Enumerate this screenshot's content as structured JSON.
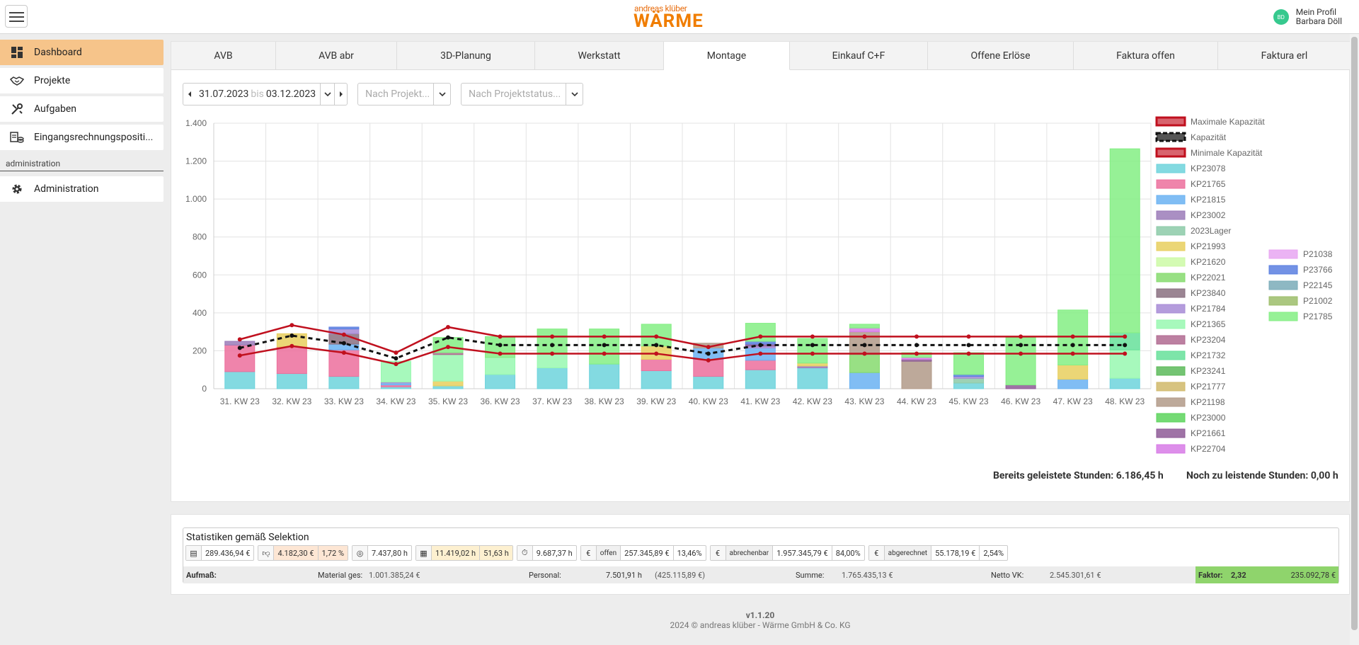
{
  "header": {
    "logo_small": "andreas klüber",
    "logo_big": "WÄRME",
    "avatar_initials": "BD",
    "profile_label": "Mein Profil",
    "profile_name": "Barbara Döll"
  },
  "sidebar": {
    "items": [
      {
        "label": "Dashboard",
        "icon": "dashboard-icon"
      },
      {
        "label": "Projekte",
        "icon": "handshake-icon"
      },
      {
        "label": "Aufgaben",
        "icon": "tools-icon"
      },
      {
        "label": "Eingangsrechnungspositi...",
        "icon": "invoice-coins-icon"
      }
    ],
    "section_label": "administration",
    "admin_item": {
      "label": "Administration",
      "icon": "gear-icon"
    }
  },
  "tabs": [
    "AVB",
    "AVB abr",
    "3D-Planung",
    "Werkstatt",
    "Montage",
    "Einkauf C+F",
    "Offene Erlöse",
    "Faktura offen",
    "Faktura erl"
  ],
  "filters": {
    "date_from": "31.07.2023",
    "date_sep": "bis",
    "date_to": "03.12.2023",
    "project_placeholder": "Nach Projekt...",
    "status_placeholder": "Nach Projektstatus..."
  },
  "totals": {
    "done": "Bereits geleistete Stunden: 6.186,45 h",
    "todo": "Noch zu leistende Stunden: 0,00 h"
  },
  "chart_data": {
    "type": "bar",
    "stacked": true,
    "categories": [
      "31. KW 23",
      "32. KW 23",
      "33. KW 23",
      "34. KW 23",
      "35. KW 23",
      "36. KW 23",
      "37. KW 23",
      "38. KW 23",
      "39. KW 23",
      "40. KW 23",
      "41. KW 23",
      "42. KW 23",
      "43. KW 23",
      "44. KW 23",
      "45. KW 23",
      "46. KW 23",
      "47. KW 23",
      "48. KW 23"
    ],
    "ylim": [
      0,
      1400
    ],
    "yticks": [
      0,
      200,
      400,
      600,
      800,
      1000,
      1200,
      1400
    ],
    "ytick_labels": [
      "0",
      "200",
      "400",
      "600",
      "800",
      "1.000",
      "1.200",
      "1.400"
    ],
    "grid": true,
    "legend_placement": "right",
    "lines": [
      {
        "name": "Maximale Kapazität",
        "color": "#c0101e",
        "dashed": false,
        "values": [
          260,
          335,
          285,
          190,
          325,
          275,
          275,
          275,
          275,
          220,
          275,
          275,
          275,
          275,
          275,
          275,
          275,
          275
        ]
      },
      {
        "name": "Kapazität",
        "color": "#111111",
        "dashed": true,
        "values": [
          215,
          280,
          240,
          160,
          270,
          230,
          230,
          230,
          230,
          185,
          230,
          230,
          230,
          230,
          230,
          230,
          230,
          230
        ]
      },
      {
        "name": "Minimale Kapazität",
        "color": "#c0101e",
        "dashed": false,
        "values": [
          175,
          225,
          190,
          130,
          220,
          185,
          185,
          185,
          185,
          150,
          185,
          185,
          185,
          185,
          185,
          185,
          185,
          185
        ]
      }
    ],
    "series": [
      {
        "name": "KP23078",
        "color": "#6dd3dc",
        "values": [
          90,
          80,
          65,
          10,
          15,
          75,
          110,
          130,
          95,
          65,
          100,
          110,
          0,
          0,
          30,
          0,
          0,
          55
        ]
      },
      {
        "name": "KP21765",
        "color": "#ec6f9c",
        "values": [
          140,
          140,
          140,
          10,
          0,
          0,
          0,
          0,
          60,
          90,
          50,
          0,
          0,
          0,
          0,
          0,
          0,
          0
        ]
      },
      {
        "name": "KP21815",
        "color": "#6ab2f2",
        "values": [
          0,
          0,
          30,
          10,
          0,
          0,
          0,
          0,
          0,
          60,
          65,
          0,
          85,
          0,
          0,
          0,
          50,
          0
        ]
      },
      {
        "name": "KP23002",
        "color": "#9b7bb8",
        "values": [
          20,
          0,
          0,
          0,
          0,
          0,
          0,
          0,
          0,
          0,
          0,
          10,
          0,
          0,
          0,
          0,
          0,
          0
        ]
      },
      {
        "name": "2023Lager",
        "color": "#8ccaa8",
        "values": [
          0,
          0,
          0,
          0,
          0,
          0,
          0,
          0,
          0,
          0,
          0,
          0,
          0,
          0,
          25,
          0,
          0,
          0
        ]
      },
      {
        "name": "KP21993",
        "color": "#e8cf5e",
        "values": [
          0,
          70,
          0,
          0,
          25,
          0,
          0,
          0,
          70,
          0,
          0,
          15,
          0,
          0,
          0,
          0,
          75,
          0
        ]
      },
      {
        "name": "KP21620",
        "color": "#cdfaa6",
        "values": [
          0,
          0,
          0,
          0,
          0,
          0,
          0,
          0,
          0,
          0,
          0,
          0,
          0,
          0,
          0,
          0,
          0,
          0
        ]
      },
      {
        "name": "KP22021",
        "color": "#86db6e",
        "values": [
          0,
          0,
          0,
          0,
          0,
          0,
          0,
          0,
          0,
          0,
          0,
          0,
          95,
          0,
          0,
          0,
          0,
          0
        ]
      },
      {
        "name": "KP23840",
        "color": "#8a7080",
        "values": [
          0,
          0,
          55,
          0,
          0,
          0,
          0,
          0,
          0,
          0,
          0,
          0,
          0,
          0,
          0,
          0,
          0,
          0
        ]
      },
      {
        "name": "KP21784",
        "color": "#a78bd6",
        "values": [
          0,
          0,
          25,
          5,
          0,
          0,
          0,
          0,
          0,
          0,
          10,
          0,
          0,
          0,
          10,
          0,
          0,
          0
        ]
      },
      {
        "name": "KP21365",
        "color": "#98f8b0",
        "values": [
          0,
          0,
          0,
          110,
          140,
          90,
          80,
          0,
          0,
          0,
          0,
          0,
          0,
          0,
          0,
          0,
          0,
          150
        ]
      },
      {
        "name": "KP23204",
        "color": "#b06a90",
        "values": [
          0,
          0,
          0,
          0,
          10,
          0,
          0,
          0,
          0,
          0,
          0,
          0,
          0,
          0,
          0,
          0,
          0,
          0
        ]
      },
      {
        "name": "KP21732",
        "color": "#66e09a",
        "values": [
          0,
          0,
          0,
          0,
          0,
          0,
          0,
          0,
          0,
          0,
          0,
          0,
          0,
          0,
          0,
          0,
          0,
          90
        ]
      },
      {
        "name": "KP23241",
        "color": "#5cba5a",
        "values": [
          0,
          0,
          0,
          0,
          0,
          0,
          0,
          0,
          0,
          0,
          0,
          0,
          0,
          0,
          0,
          0,
          0,
          0
        ]
      },
      {
        "name": "KP21777",
        "color": "#d0b86a",
        "values": [
          0,
          0,
          0,
          0,
          0,
          0,
          0,
          0,
          0,
          0,
          0,
          0,
          0,
          0,
          0,
          0,
          0,
          0
        ]
      },
      {
        "name": "KP21198",
        "color": "#b29a88",
        "values": [
          0,
          0,
          0,
          0,
          0,
          0,
          0,
          0,
          0,
          25,
          0,
          0,
          120,
          145,
          0,
          0,
          0,
          0
        ]
      },
      {
        "name": "KP23000",
        "color": "#5cd45c",
        "values": [
          0,
          0,
          0,
          0,
          0,
          0,
          0,
          0,
          0,
          0,
          0,
          0,
          0,
          0,
          0,
          0,
          0,
          0
        ]
      },
      {
        "name": "KP21661",
        "color": "#8e5a96",
        "values": [
          0,
          0,
          0,
          0,
          0,
          0,
          0,
          0,
          0,
          0,
          10,
          0,
          0,
          10,
          0,
          20,
          0,
          0
        ]
      },
      {
        "name": "KP22704",
        "color": "#d77ae6",
        "values": [
          0,
          0,
          0,
          0,
          0,
          0,
          0,
          0,
          0,
          0,
          0,
          0,
          20,
          10,
          0,
          0,
          0,
          0
        ]
      },
      {
        "name": "P21038",
        "color": "#e8a6f2",
        "values": [
          0,
          0,
          0,
          0,
          0,
          0,
          0,
          0,
          0,
          0,
          0,
          0,
          0,
          0,
          0,
          0,
          0,
          0
        ]
      },
      {
        "name": "P23766",
        "color": "#5a7fe0",
        "values": [
          0,
          0,
          10,
          0,
          0,
          0,
          0,
          0,
          0,
          0,
          15,
          0,
          0,
          0,
          10,
          0,
          0,
          0
        ]
      },
      {
        "name": "P22145",
        "color": "#7aabb8",
        "values": [
          0,
          0,
          0,
          0,
          0,
          0,
          0,
          0,
          0,
          0,
          0,
          0,
          0,
          0,
          0,
          0,
          0,
          0
        ]
      },
      {
        "name": "P21002",
        "color": "#9cbd6a",
        "values": [
          0,
          0,
          0,
          0,
          0,
          0,
          0,
          0,
          0,
          0,
          0,
          0,
          0,
          0,
          0,
          0,
          0,
          0
        ]
      },
      {
        "name": "P21785",
        "color": "#84ee84",
        "values": [
          0,
          0,
          0,
          0,
          80,
          110,
          125,
          185,
          115,
          0,
          95,
          130,
          20,
          25,
          115,
          250,
          290,
          970
        ]
      }
    ]
  },
  "stats": {
    "title": "Statistiken gemäß Selektion",
    "chips": [
      {
        "icon": "register-icon",
        "cells": [
          "289.436,94 €"
        ]
      },
      {
        "icon": "thumbs-down-icon",
        "cells": [
          "4.182,30 €",
          "1,72 %"
        ],
        "highlight": "#fde6d4"
      },
      {
        "icon": "target-icon",
        "cells": [
          "7.437,80 h"
        ]
      },
      {
        "icon": "calculator-icon",
        "cells": [
          "11.419,02 h",
          "51,63 h"
        ],
        "highlight": "#fdf0d0"
      },
      {
        "icon": "stopwatch-icon",
        "cells": [
          "9.687,37 h"
        ]
      },
      {
        "icon": "euro-icon",
        "label": "offen",
        "cells": [
          "257.345,89 €",
          "13,46%"
        ]
      },
      {
        "icon": "euro-icon",
        "label": "abrechenbar",
        "cells": [
          "1.957.345,79 €",
          "84,00%"
        ]
      },
      {
        "icon": "euro-icon",
        "label": "abgerechnet",
        "cells": [
          "55.178,19 €",
          "2,54%"
        ]
      }
    ],
    "row": {
      "aufmass_label": "Aufmaß:",
      "material_label": "Material ges:",
      "material_value": "1.001.385,24 €",
      "personal_label": "Personal:",
      "personal_hours": "7.501,91 h",
      "personal_value": "(425.115,89 €)",
      "summe_label": "Summe:",
      "summe_value": "1.765.435,13 €",
      "netto_label": "Netto VK:",
      "netto_value": "2.545.301,61 €",
      "faktor_label": "Faktor:",
      "faktor_value": "2,32",
      "faktor_amount": "235.092,78 €"
    }
  },
  "footer": {
    "version": "v1.1.20",
    "copyright": "2024 © andreas klüber - Wärme GmbH & Co. KG"
  }
}
